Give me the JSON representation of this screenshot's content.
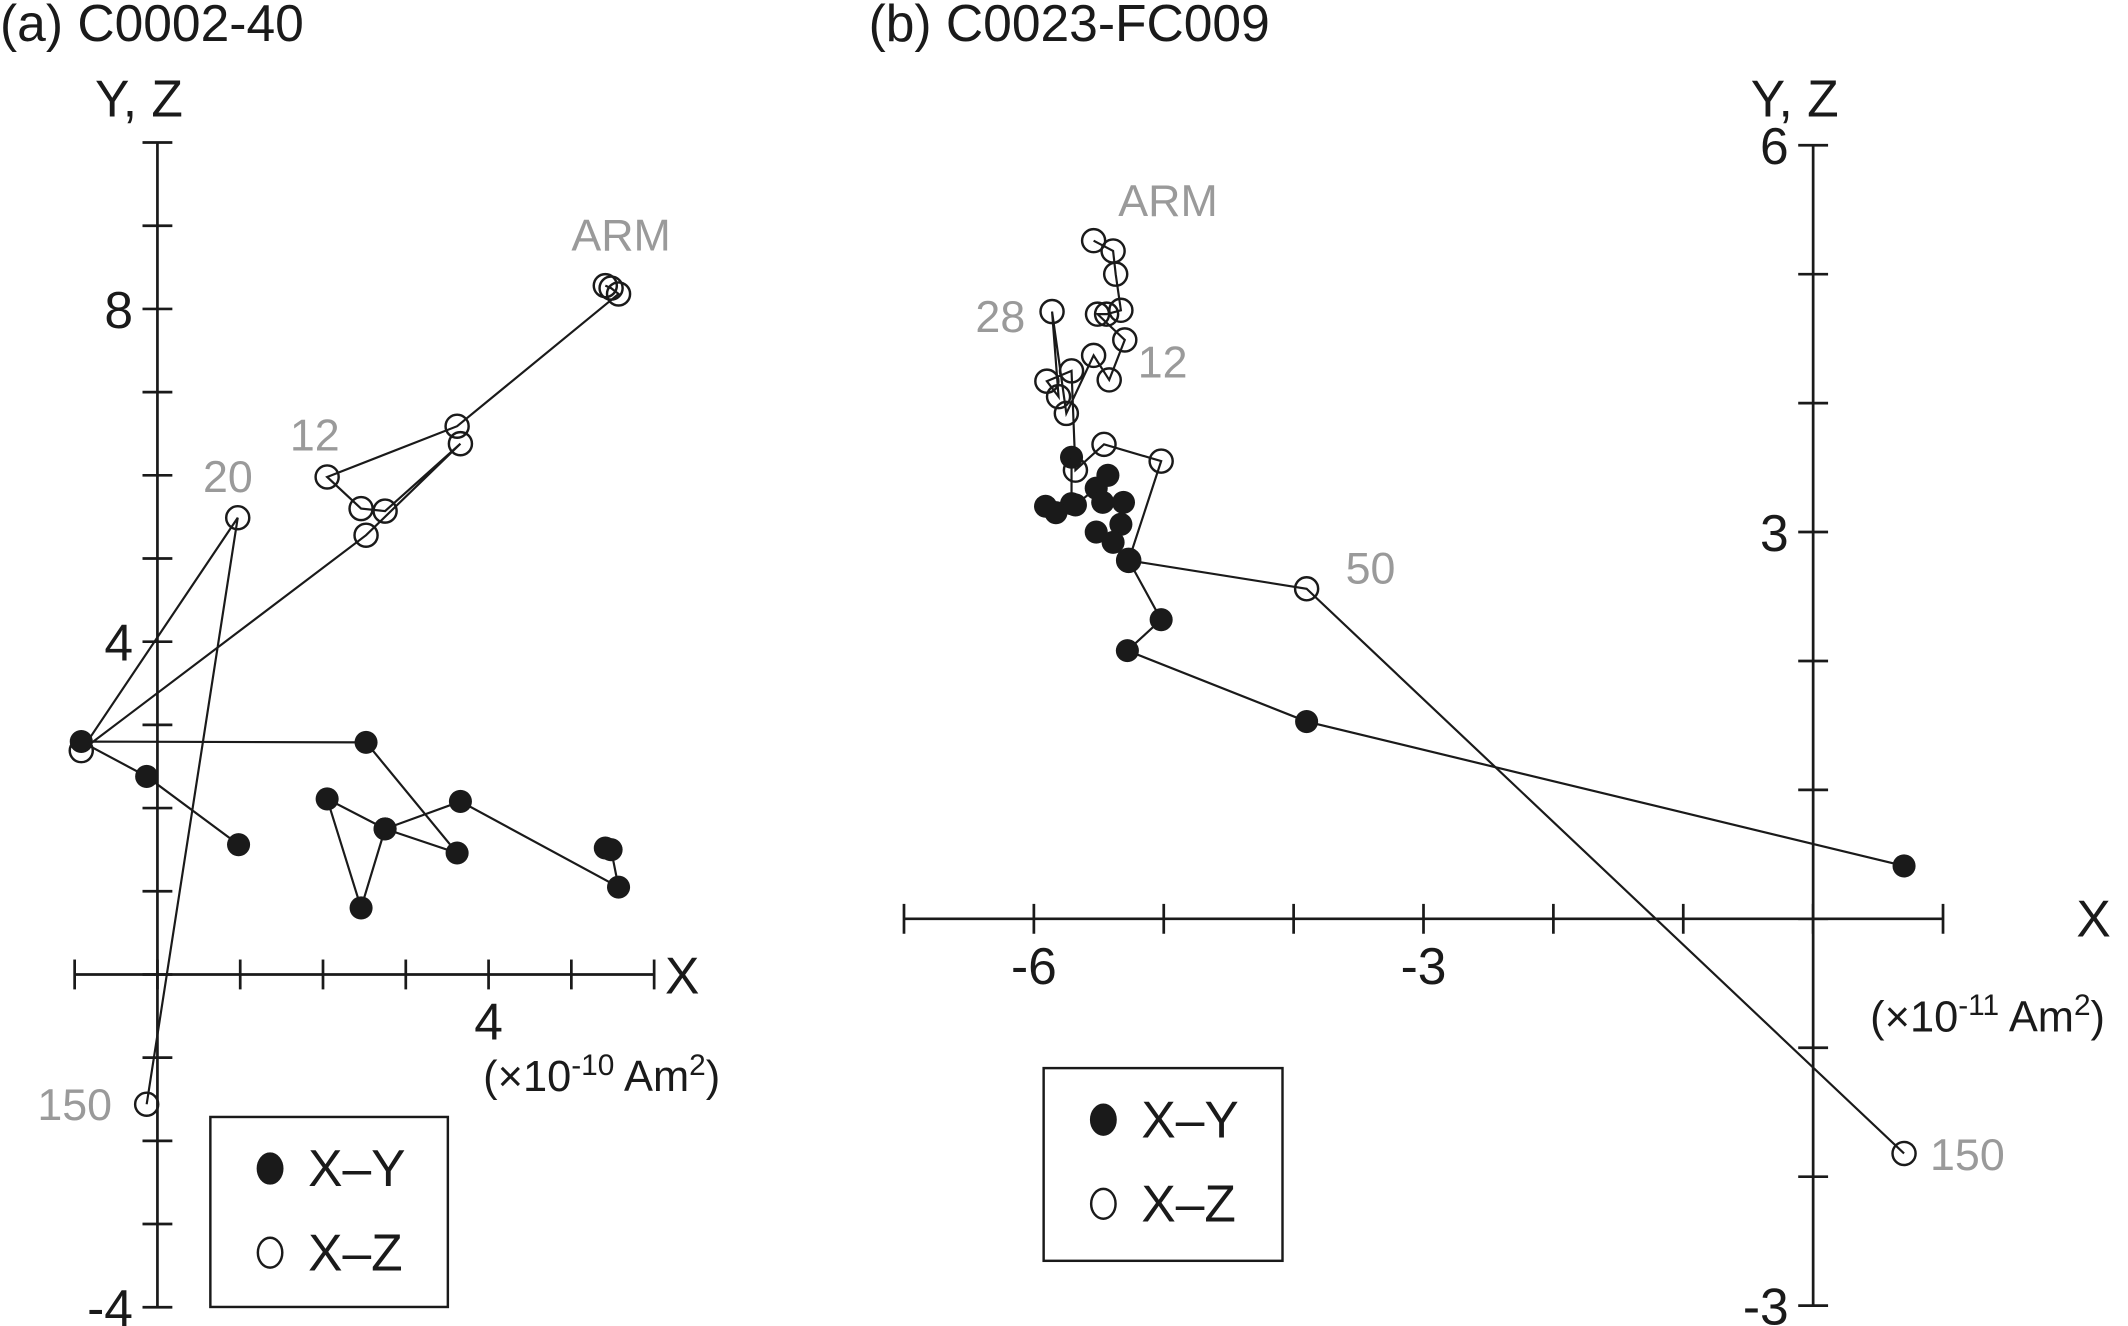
{
  "chart_data": [
    {
      "type": "scatter",
      "title": "(a) C0002-40",
      "ylabel": "Y, Z",
      "xlabel": "X",
      "unit_prefix": "(×10",
      "unit_exp": "-10",
      "unit_suffix": " Am",
      "unit_sq": "2",
      "unit_close": ")",
      "xlim": [
        -1,
        6
      ],
      "ylim": [
        -4,
        10
      ],
      "xticks": [
        4
      ],
      "yticks": [
        8,
        4,
        -4
      ],
      "grid": false,
      "legend_placement": "bottom-center",
      "series": [
        {
          "name": "X–Y",
          "marker": "filled",
          "points": [
            [
              5.41,
              1.52
            ],
            [
              5.48,
              1.5
            ],
            [
              5.57,
              1.05
            ],
            [
              3.66,
              2.08
            ],
            [
              2.75,
              1.75
            ],
            [
              2.05,
              2.11
            ],
            [
              2.46,
              0.8
            ],
            [
              2.75,
              1.75
            ],
            [
              3.62,
              1.46
            ],
            [
              2.52,
              2.79
            ],
            [
              -0.92,
              2.8
            ],
            [
              -0.13,
              2.38
            ],
            [
              0.98,
              1.56
            ]
          ]
        },
        {
          "name": "X–Z",
          "marker": "open",
          "points": [
            [
              5.41,
              8.28
            ],
            [
              5.48,
              8.25
            ],
            [
              5.57,
              8.18
            ],
            [
              3.62,
              6.59
            ],
            [
              2.05,
              5.98
            ],
            [
              2.46,
              5.6
            ],
            [
              2.75,
              5.57
            ],
            [
              3.66,
              6.38
            ],
            [
              2.52,
              5.28
            ],
            [
              -0.92,
              2.69
            ],
            [
              0.97,
              5.49
            ],
            [
              -0.13,
              -1.56
            ]
          ]
        }
      ],
      "annotations": [
        {
          "text": "ARM",
          "x": 5.0,
          "y": 8.7
        },
        {
          "text": "12",
          "x": 1.6,
          "y": 6.3
        },
        {
          "text": "20",
          "x": 0.55,
          "y": 5.8
        },
        {
          "text": "150",
          "x": -1.45,
          "y": -1.75
        }
      ]
    },
    {
      "type": "scatter",
      "title": "(b) C0023-FC009",
      "ylabel": "Y, Z",
      "xlabel": "X",
      "unit_prefix": "(×10",
      "unit_exp": "-11",
      "unit_suffix": " Am",
      "unit_sq": "2",
      "unit_close": ")",
      "xlim": [
        -7,
        1
      ],
      "ylim": [
        -3,
        6
      ],
      "xticks": [
        -6,
        -3
      ],
      "yticks": [
        6,
        3,
        -3
      ],
      "grid": false,
      "legend_placement": "bottom-center",
      "series": [
        {
          "name": "X–Y",
          "marker": "filled",
          "points": [
            [
              -5.71,
              3.58
            ],
            [
              -5.71,
              3.22
            ],
            [
              -5.91,
              3.2
            ],
            [
              -5.83,
              3.15
            ],
            [
              -5.68,
              3.21
            ],
            [
              -5.52,
              3.34
            ],
            [
              -5.43,
              3.44
            ],
            [
              -5.47,
              3.23
            ],
            [
              -5.31,
              3.23
            ],
            [
              -5.33,
              3.06
            ],
            [
              -5.39,
              2.92
            ],
            [
              -5.52,
              3.0
            ],
            [
              -5.27,
              2.78
            ],
            [
              -5.02,
              2.32
            ],
            [
              -5.28,
              2.08
            ],
            [
              -3.9,
              1.53
            ],
            [
              0.7,
              0.41
            ]
          ]
        },
        {
          "name": "X–Z",
          "marker": "open",
          "points": [
            [
              -5.54,
              5.26
            ],
            [
              -5.39,
              5.18
            ],
            [
              -5.37,
              5.0
            ],
            [
              -5.33,
              4.72
            ],
            [
              -5.44,
              4.69
            ],
            [
              -5.51,
              4.69
            ],
            [
              -5.3,
              4.49
            ],
            [
              -5.42,
              4.18
            ],
            [
              -5.54,
              4.37
            ],
            [
              -5.75,
              3.92
            ],
            [
              -5.86,
              4.71
            ],
            [
              -5.81,
              4.05
            ],
            [
              -5.9,
              4.17
            ],
            [
              -5.71,
              4.25
            ],
            [
              -5.68,
              3.48
            ],
            [
              -5.46,
              3.68
            ],
            [
              -5.02,
              3.55
            ],
            [
              -5.27,
              2.78
            ],
            [
              -3.9,
              2.56
            ],
            [
              0.7,
              -1.82
            ]
          ]
        }
      ],
      "annotations": [
        {
          "text": "ARM",
          "x": -5.35,
          "y": 5.45
        },
        {
          "text": "28",
          "x": -6.45,
          "y": 4.55
        },
        {
          "text": "12",
          "x": -5.2,
          "y": 4.2
        },
        {
          "text": "50",
          "x": -3.6,
          "y": 2.6
        },
        {
          "text": "150",
          "x": 0.9,
          "y": -1.95
        }
      ]
    }
  ]
}
